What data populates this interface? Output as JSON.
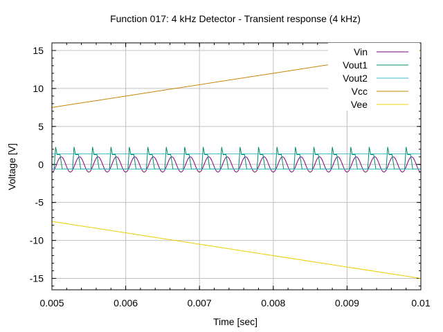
{
  "chart_data": {
    "type": "line",
    "title": "Function 017: 4 kHz Detector - Transient response (4 kHz)",
    "xlabel": "Time [sec]",
    "ylabel": "Voltage [V]",
    "xlim": [
      0.005,
      0.01
    ],
    "ylim": [
      -16.5,
      16
    ],
    "xticks": [
      0.005,
      0.006,
      0.007,
      0.008,
      0.009,
      0.01
    ],
    "xtick_labels": [
      "0.005",
      "0.006",
      "0.007",
      "0.008",
      "0.009",
      "0.01"
    ],
    "yticks": [
      -15,
      -10,
      -5,
      0,
      5,
      10,
      15
    ],
    "ytick_labels": [
      "-15",
      "-10",
      "-5",
      "0",
      "5",
      "10",
      "15"
    ],
    "grid": true,
    "legend_position": "top-right",
    "series": [
      {
        "name": "Vin",
        "color": "#800080",
        "kind": "sine",
        "frequency_hz": 4000,
        "amplitude_v": 1.0,
        "offset_v": 0.0,
        "phase_rad": -1.57
      },
      {
        "name": "Vout1",
        "color": "#008b6b",
        "kind": "clipped-spikes",
        "frequency_hz": 4000,
        "high_v": 1.3,
        "low_v": -0.6,
        "spike_peak_v": 2.3,
        "spike_time_in_period": 5e-05
      },
      {
        "name": "Vout2",
        "color": "#3cb8c8",
        "kind": "dc-pair",
        "levels_v": [
          1.4,
          -0.6
        ]
      },
      {
        "name": "Vcc",
        "color": "#c88400",
        "kind": "linear",
        "x": [
          0.005,
          0.01
        ],
        "y": [
          7.5,
          15.0
        ]
      },
      {
        "name": "Vee",
        "color": "#e8d000",
        "kind": "linear",
        "x": [
          0.005,
          0.01
        ],
        "y": [
          -7.5,
          -15.0
        ]
      }
    ]
  }
}
